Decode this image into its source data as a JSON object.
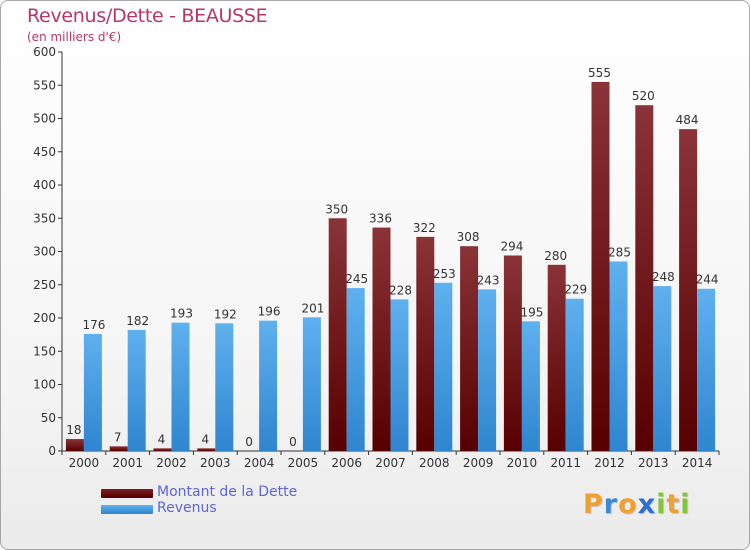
{
  "title": "Revenus/Dette - BEAUSSE",
  "subtitle": "(en milliers d'€)",
  "colors": {
    "debt": "#6b0c0c",
    "revenue": "#3f9fe6",
    "title": "#b5376a",
    "legend_text": "#5b67d6"
  },
  "legend": {
    "debt_label": "Montant de la Dette",
    "revenue_label": "Revenus"
  },
  "logo": {
    "letters": [
      "P",
      "r",
      "o",
      "x",
      "i",
      "t",
      "i"
    ],
    "colors": [
      "#f0a030",
      "#3a88d8",
      "#f0a030",
      "#2c6fd0",
      "#86c43b",
      "#f0a030",
      "#86c43b"
    ]
  },
  "chart_data": {
    "type": "bar",
    "categories": [
      "2000",
      "2001",
      "2002",
      "2003",
      "2004",
      "2005",
      "2006",
      "2007",
      "2008",
      "2009",
      "2010",
      "2011",
      "2012",
      "2013",
      "2014"
    ],
    "series": [
      {
        "name": "Montant de la Dette",
        "values": [
          18,
          7,
          4,
          4,
          0,
          0,
          350,
          336,
          322,
          308,
          294,
          280,
          555,
          520,
          484
        ]
      },
      {
        "name": "Revenus",
        "values": [
          176,
          182,
          193,
          192,
          196,
          201,
          245,
          228,
          253,
          243,
          195,
          229,
          285,
          248,
          244
        ]
      }
    ],
    "ylim": [
      0,
      600
    ],
    "yticks": [
      0,
      50,
      100,
      150,
      200,
      250,
      300,
      350,
      400,
      450,
      500,
      550,
      600
    ],
    "grid": false,
    "legend_position": "bottom-left"
  }
}
